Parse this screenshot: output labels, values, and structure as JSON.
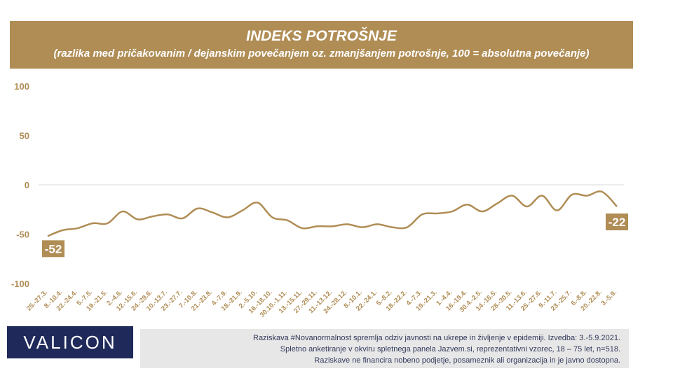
{
  "header": {
    "title": "INDEKS POTROŠNJE",
    "subtitle": "(razlika med pričakovanim / dejanskim povečanjem oz. zmanjšanjem potrošnje, 100 = absolutna povečanje)"
  },
  "logo": "VALICON",
  "footer": {
    "line1": "Raziskava #Novanormalnost spremlja odziv javnosti na ukrepe in življenje v epidemiji. Izvedba: 3.-5.9.2021.",
    "line2": "Spletno anketiranje v okviru spletnega panela Jazvem.si, reprezentativni vzorec, 18 – 75 let, n=518.",
    "line3": "Raziskave ne financira nobeno podjetje, posameznik ali organizacija in je javno dostopna."
  },
  "colors": {
    "header": "#b08d55",
    "line": "#b08d55",
    "axis_text": "#b08d55",
    "logo": "#1f2a5a",
    "footer_bg": "#e7e7e7"
  },
  "chart_data": {
    "type": "line",
    "ylim": [
      -100,
      100
    ],
    "yticks": [
      100,
      50,
      0,
      -50,
      -100
    ],
    "categories": [
      "25.-27.3.",
      "8.-10.4.",
      "22.-24.4.",
      "5.-7.5.",
      "19.-21.5.",
      "2.-4.6.",
      "12.-15.6.",
      "24.-29.6.",
      "10.-13.7.",
      "23.-27.7.",
      "7.-10.8.",
      "21.-23.8.",
      "4.-7.9.",
      "18.-21.9.",
      "2.-5.10.",
      "16.-18.10.",
      "30.10.-1.11.",
      "13.-15.11.",
      "27.-29.11.",
      "11.-13.12.",
      "24.-28.12.",
      "8.-10.1.",
      "22.-24.1.",
      "5.-8.2.",
      "18.-22.2.",
      "4.-7.3.",
      "19.-21.3.",
      "1.-4.4.",
      "16.-19.4.",
      "30.4.-2.5.",
      "14.-16.5.",
      "28.-30.5.",
      "11.-13.6.",
      "25.-27.6.",
      "9.-11.7.",
      "23.-25.7.",
      "6.-8.8.",
      "20.-22.8.",
      "3.-5.9."
    ],
    "series": [
      {
        "values": [
          -52,
          -46,
          -44,
          -39,
          -39,
          -27,
          -35,
          -32,
          -30,
          -34,
          -24,
          -28,
          -33,
          -26,
          -18,
          -33,
          -36,
          -44,
          -42,
          -42,
          -40,
          -43,
          -40,
          -43,
          -43,
          -30,
          -29,
          -27,
          -20,
          -27,
          -19,
          -11,
          -22,
          -11,
          -26,
          -10,
          -11,
          -7,
          -22
        ]
      }
    ],
    "data_labels": {
      "first": "-52",
      "last": "-22"
    },
    "grid": true,
    "legend": "none"
  }
}
